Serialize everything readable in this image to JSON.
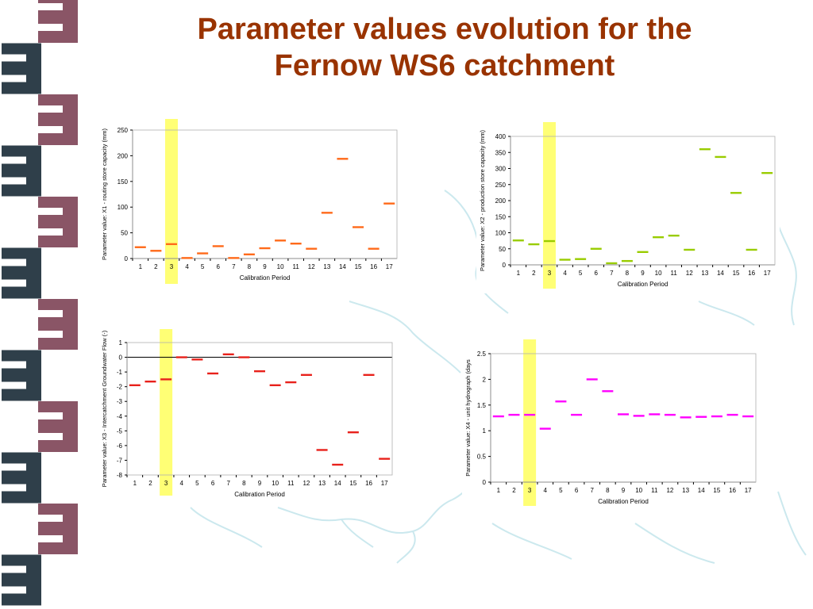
{
  "slide": {
    "title_line1": "Parameter values evolution for the",
    "title_line2": "Fernow WS6 catchment",
    "title_color": "#993300",
    "highlight_color": "#ffff66",
    "side_pattern_colors": [
      "#2f3f4a",
      "#8a5566"
    ]
  },
  "chart_data": [
    {
      "type": "scatter",
      "marker": "dash",
      "color": "#ff6a1a",
      "xlabel": "Calibration Period",
      "ylabel": "Parameter value: X1 - routing store capacity (mm)",
      "categories": [
        "1",
        "2",
        "3",
        "4",
        "5",
        "6",
        "7",
        "8",
        "9",
        "10",
        "11",
        "12",
        "13",
        "14",
        "15",
        "16",
        "17"
      ],
      "values": [
        22,
        15,
        28,
        1,
        10,
        24,
        1,
        8,
        20,
        35,
        29,
        19,
        89,
        194,
        61,
        19,
        107
      ],
      "ylim": [
        0,
        250
      ],
      "yticks": [
        "0",
        "50",
        "100",
        "150",
        "200",
        "250"
      ],
      "highlight_period": "3",
      "grid": false
    },
    {
      "type": "scatter",
      "marker": "dash",
      "color": "#99cc00",
      "xlabel": "Calibration Period",
      "ylabel": "Parameter value: X2 - production store capacity (mm)",
      "categories": [
        "1",
        "2",
        "3",
        "4",
        "5",
        "6",
        "7",
        "8",
        "9",
        "10",
        "11",
        "12",
        "13",
        "14",
        "15",
        "16",
        "17"
      ],
      "values": [
        76,
        64,
        74,
        16,
        18,
        50,
        5,
        12,
        40,
        86,
        91,
        47,
        360,
        336,
        224,
        47,
        286
      ],
      "ylim": [
        0,
        400
      ],
      "yticks": [
        "0",
        "50",
        "100",
        "150",
        "200",
        "250",
        "300",
        "350",
        "400"
      ],
      "highlight_period": "3",
      "grid": false
    },
    {
      "type": "scatter",
      "marker": "dash",
      "color": "#e8211b",
      "xlabel": "Calibration Period",
      "ylabel": "Parameter value: X3 - Intercatchment Groundwater Flow (-)",
      "categories": [
        "1",
        "2",
        "3",
        "4",
        "5",
        "6",
        "7",
        "8",
        "9",
        "10",
        "11",
        "12",
        "13",
        "14",
        "15",
        "16",
        "17"
      ],
      "values": [
        -1.9,
        -1.65,
        -1.5,
        0.0,
        -0.15,
        -1.1,
        0.2,
        0.0,
        -0.95,
        -1.9,
        -1.7,
        -1.2,
        -6.3,
        -7.3,
        -5.1,
        -1.2,
        -6.9
      ],
      "ylim": [
        -8,
        1
      ],
      "yticks": [
        "-8",
        "-7",
        "-6",
        "-5",
        "-4",
        "-3",
        "-2",
        "-1",
        "0",
        "1"
      ],
      "highlight_period": "3",
      "grid": false
    },
    {
      "type": "scatter",
      "marker": "dash",
      "color": "#ff00ff",
      "xlabel": "Calibration Period",
      "ylabel": "Parameter value: X4 - unit hydrograph (days",
      "categories": [
        "1",
        "2",
        "3",
        "4",
        "5",
        "6",
        "7",
        "8",
        "9",
        "10",
        "11",
        "12",
        "13",
        "14",
        "15",
        "16",
        "17"
      ],
      "values": [
        1.28,
        1.31,
        1.31,
        1.04,
        1.57,
        1.31,
        2.0,
        1.77,
        1.32,
        1.29,
        1.32,
        1.31,
        1.26,
        1.27,
        1.28,
        1.31,
        1.28
      ],
      "ylim": [
        0,
        2.5
      ],
      "yticks": [
        "0",
        "0.5",
        "1",
        "1.5",
        "2",
        "2.5"
      ],
      "highlight_period": "3",
      "grid": false
    }
  ]
}
